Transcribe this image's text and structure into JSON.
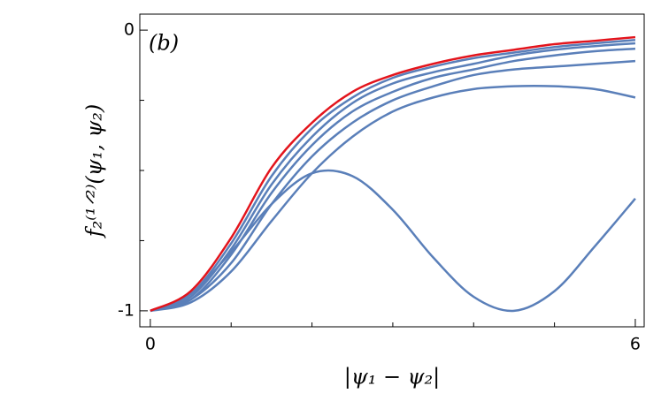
{
  "chart_data": {
    "type": "line",
    "panel_label": "(b)",
    "xlabel": "|ψ₁ − ψ₂|",
    "ylabel": "f₂⁽¹ᐟ²⁾(ψ₁, ψ₂)",
    "x": [
      0,
      0.5,
      1,
      1.5,
      2,
      2.5,
      3,
      3.5,
      4,
      4.5,
      5,
      5.5,
      6
    ],
    "series": [
      {
        "color": "#5a7fb9",
        "values": [
          -1,
          -0.94,
          -0.79,
          -0.62,
          -0.51,
          -0.52,
          -0.64,
          -0.81,
          -0.95,
          -1.0,
          -0.93,
          -0.77,
          -0.6
        ]
      },
      {
        "color": "#5a7fb9",
        "values": [
          -1,
          -0.97,
          -0.86,
          -0.68,
          -0.51,
          -0.38,
          -0.29,
          -0.24,
          -0.21,
          -0.2,
          -0.2,
          -0.21,
          -0.24
        ]
      },
      {
        "color": "#5a7fb9",
        "values": [
          -1,
          -0.96,
          -0.83,
          -0.62,
          -0.45,
          -0.33,
          -0.25,
          -0.2,
          -0.16,
          -0.14,
          -0.13,
          -0.12,
          -0.11
        ]
      },
      {
        "color": "#5a7fb9",
        "values": [
          -1,
          -0.96,
          -0.8,
          -0.58,
          -0.41,
          -0.29,
          -0.22,
          -0.17,
          -0.14,
          -0.11,
          -0.09,
          -0.075,
          -0.066
        ]
      },
      {
        "color": "#5a7fb9",
        "values": [
          -1,
          -0.95,
          -0.78,
          -0.55,
          -0.38,
          -0.26,
          -0.19,
          -0.15,
          -0.12,
          -0.09,
          -0.07,
          -0.057,
          -0.047
        ]
      },
      {
        "color": "#5a7fb9",
        "values": [
          -1,
          -0.94,
          -0.76,
          -0.52,
          -0.35,
          -0.24,
          -0.17,
          -0.13,
          -0.1,
          -0.08,
          -0.06,
          -0.047,
          -0.035
        ]
      },
      {
        "color": "#e3141c",
        "values": [
          -1,
          -0.93,
          -0.74,
          -0.49,
          -0.33,
          -0.22,
          -0.16,
          -0.12,
          -0.09,
          -0.07,
          -0.05,
          -0.038,
          -0.025
        ]
      }
    ],
    "xlim": [
      -0.13,
      6.11
    ],
    "ylim": [
      -1.057,
      0.057
    ],
    "xticks": [
      0,
      6
    ],
    "yticks": [
      0,
      -1
    ],
    "xminorticks": [
      1,
      2,
      3,
      4,
      5
    ],
    "yminorticks": [
      -0.25,
      -0.5,
      -0.75
    ]
  }
}
